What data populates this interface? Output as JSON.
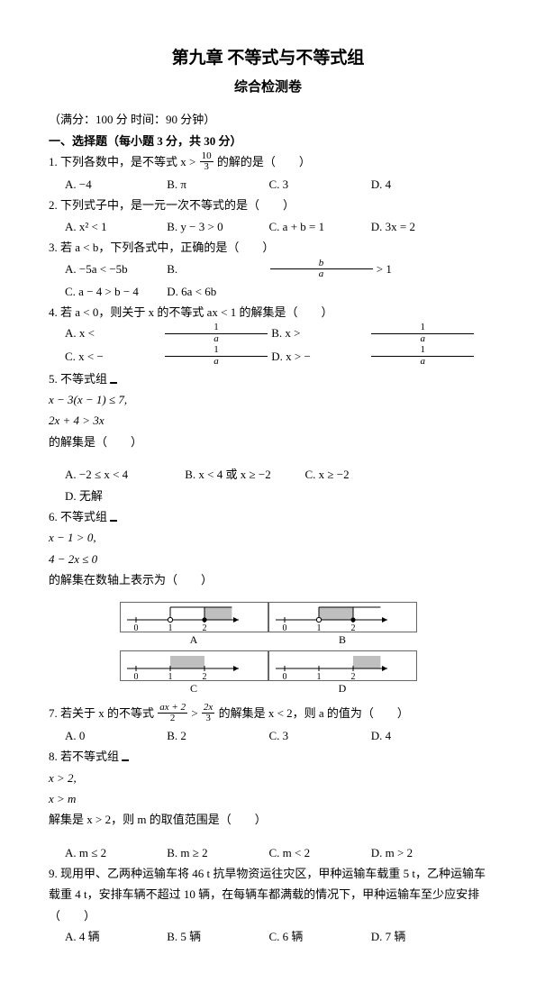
{
  "header": {
    "title": "第九章 不等式与不等式组",
    "subtitle": "综合检测卷",
    "full_marks": "（满分：100 分 时间：90 分钟）"
  },
  "sectionA": {
    "heading": "一、选择题（每小题 3 分，共 30 分）",
    "q1": {
      "stem_pre": "1. 下列各数中，是不等式 x > ",
      "frac_n": "10",
      "frac_d": "3",
      "stem_post": " 的解的是（　　）",
      "A": "A. −4",
      "B": "B. π",
      "C": "C. 3",
      "D": "D. 4"
    },
    "q2": {
      "stem": "2. 下列式子中，是一元一次不等式的是（　　）",
      "A": "A. x² < 1",
      "B": "B. y − 3 > 0",
      "C": "C. a + b = 1",
      "D": "D. 3x = 2"
    },
    "q3": {
      "stem": "3. 若 a < b，下列各式中，正确的是（　　）",
      "A": "A. −5a < −5b",
      "B_pre": "B. ",
      "B_post": "",
      "C": "C. a − 4 > b − 4",
      "D": "D. 6a < 6b",
      "B_fn": "b",
      "B_fd": "a"
    },
    "q4": {
      "stem_pre": "4. 若 a < 0，则关于 x 的不等式 ax < 1 的解集是（　　）",
      "A_pre": "A. x < ",
      "B_pre": "B. x > ",
      "C_pre": "C. x < − ",
      "D_pre": "D. x > − ",
      "fn": "1",
      "fd": "a"
    },
    "q5": {
      "stem_pre": "5. 不等式组",
      "sys1": "x − 3(x − 1) ≤ 7,",
      "sys2": "2x + 4 > 3x",
      "stem_post": " 的解集是（　　）",
      "A": "A. −2 ≤ x < 4",
      "B": "B. x < 4 或 x ≥ −2",
      "C": "C. x ≥ −2",
      "D": "D. 无解"
    },
    "q6": {
      "stem_pre": "6. 不等式组",
      "sys1": "x − 1 > 0,",
      "sys2": "4 − 2x ≤ 0",
      "stem_post": " 的解集在数轴上表示为（　　）"
    },
    "diagrams": {
      "ticks": [
        0,
        1,
        2
      ],
      "arrow_to": 3.0,
      "A": {
        "shade_from": 2,
        "shade_to": 2.8,
        "open_at": 1,
        "closed_at": 2,
        "bracket_range": [
          1,
          2.8
        ]
      },
      "B": {
        "shade_from": 1,
        "shade_to": 2,
        "open_at": 1,
        "closed_at": 2,
        "bracket_range": [
          1,
          2.8
        ]
      },
      "C": {
        "shade_from": 1,
        "shade_to": 2
      },
      "D": {
        "shade_from": 2,
        "shade_to": 2.8
      },
      "labels": {
        "A": "A",
        "B": "B",
        "C": "C",
        "D": "D"
      },
      "style": {
        "shade": "#bfbfbf",
        "line": "#000000",
        "font": 10
      }
    },
    "q7": {
      "stem_pre": "7. 若关于 x 的不等式 ",
      "f1n": "ax + 2",
      "f1d": "2",
      "mid": " > ",
      "f2n": "2x",
      "f2d": "3",
      "stem_post": " 的解集是 x < 2，则 a 的值为（　　）",
      "A": "A. 0",
      "B": "B. 2",
      "C": "C. 3",
      "D": "D. 4"
    },
    "q8": {
      "stem_pre": "8. 若不等式组",
      "sys1": "x > 2,",
      "sys2": "x > m",
      "stem_post": " 解集是 x > 2，则 m 的取值范围是（　　）",
      "A": "A. m ≤ 2",
      "B": "B. m ≥ 2",
      "C": "C. m < 2",
      "D": "D. m > 2"
    },
    "q9": {
      "stem": "9. 现用甲、乙两种运输车将 46 t 抗旱物资运往灾区，甲种运输车载重 5 t，乙种运输车载重 4 t，安排车辆不超过 10 辆，在每辆车都满载的情况下，甲种运输车至少应安排（　　）",
      "A": "A. 4 辆",
      "B": "B. 5 辆",
      "C": "C. 6 辆",
      "D": "D. 7 辆"
    }
  }
}
